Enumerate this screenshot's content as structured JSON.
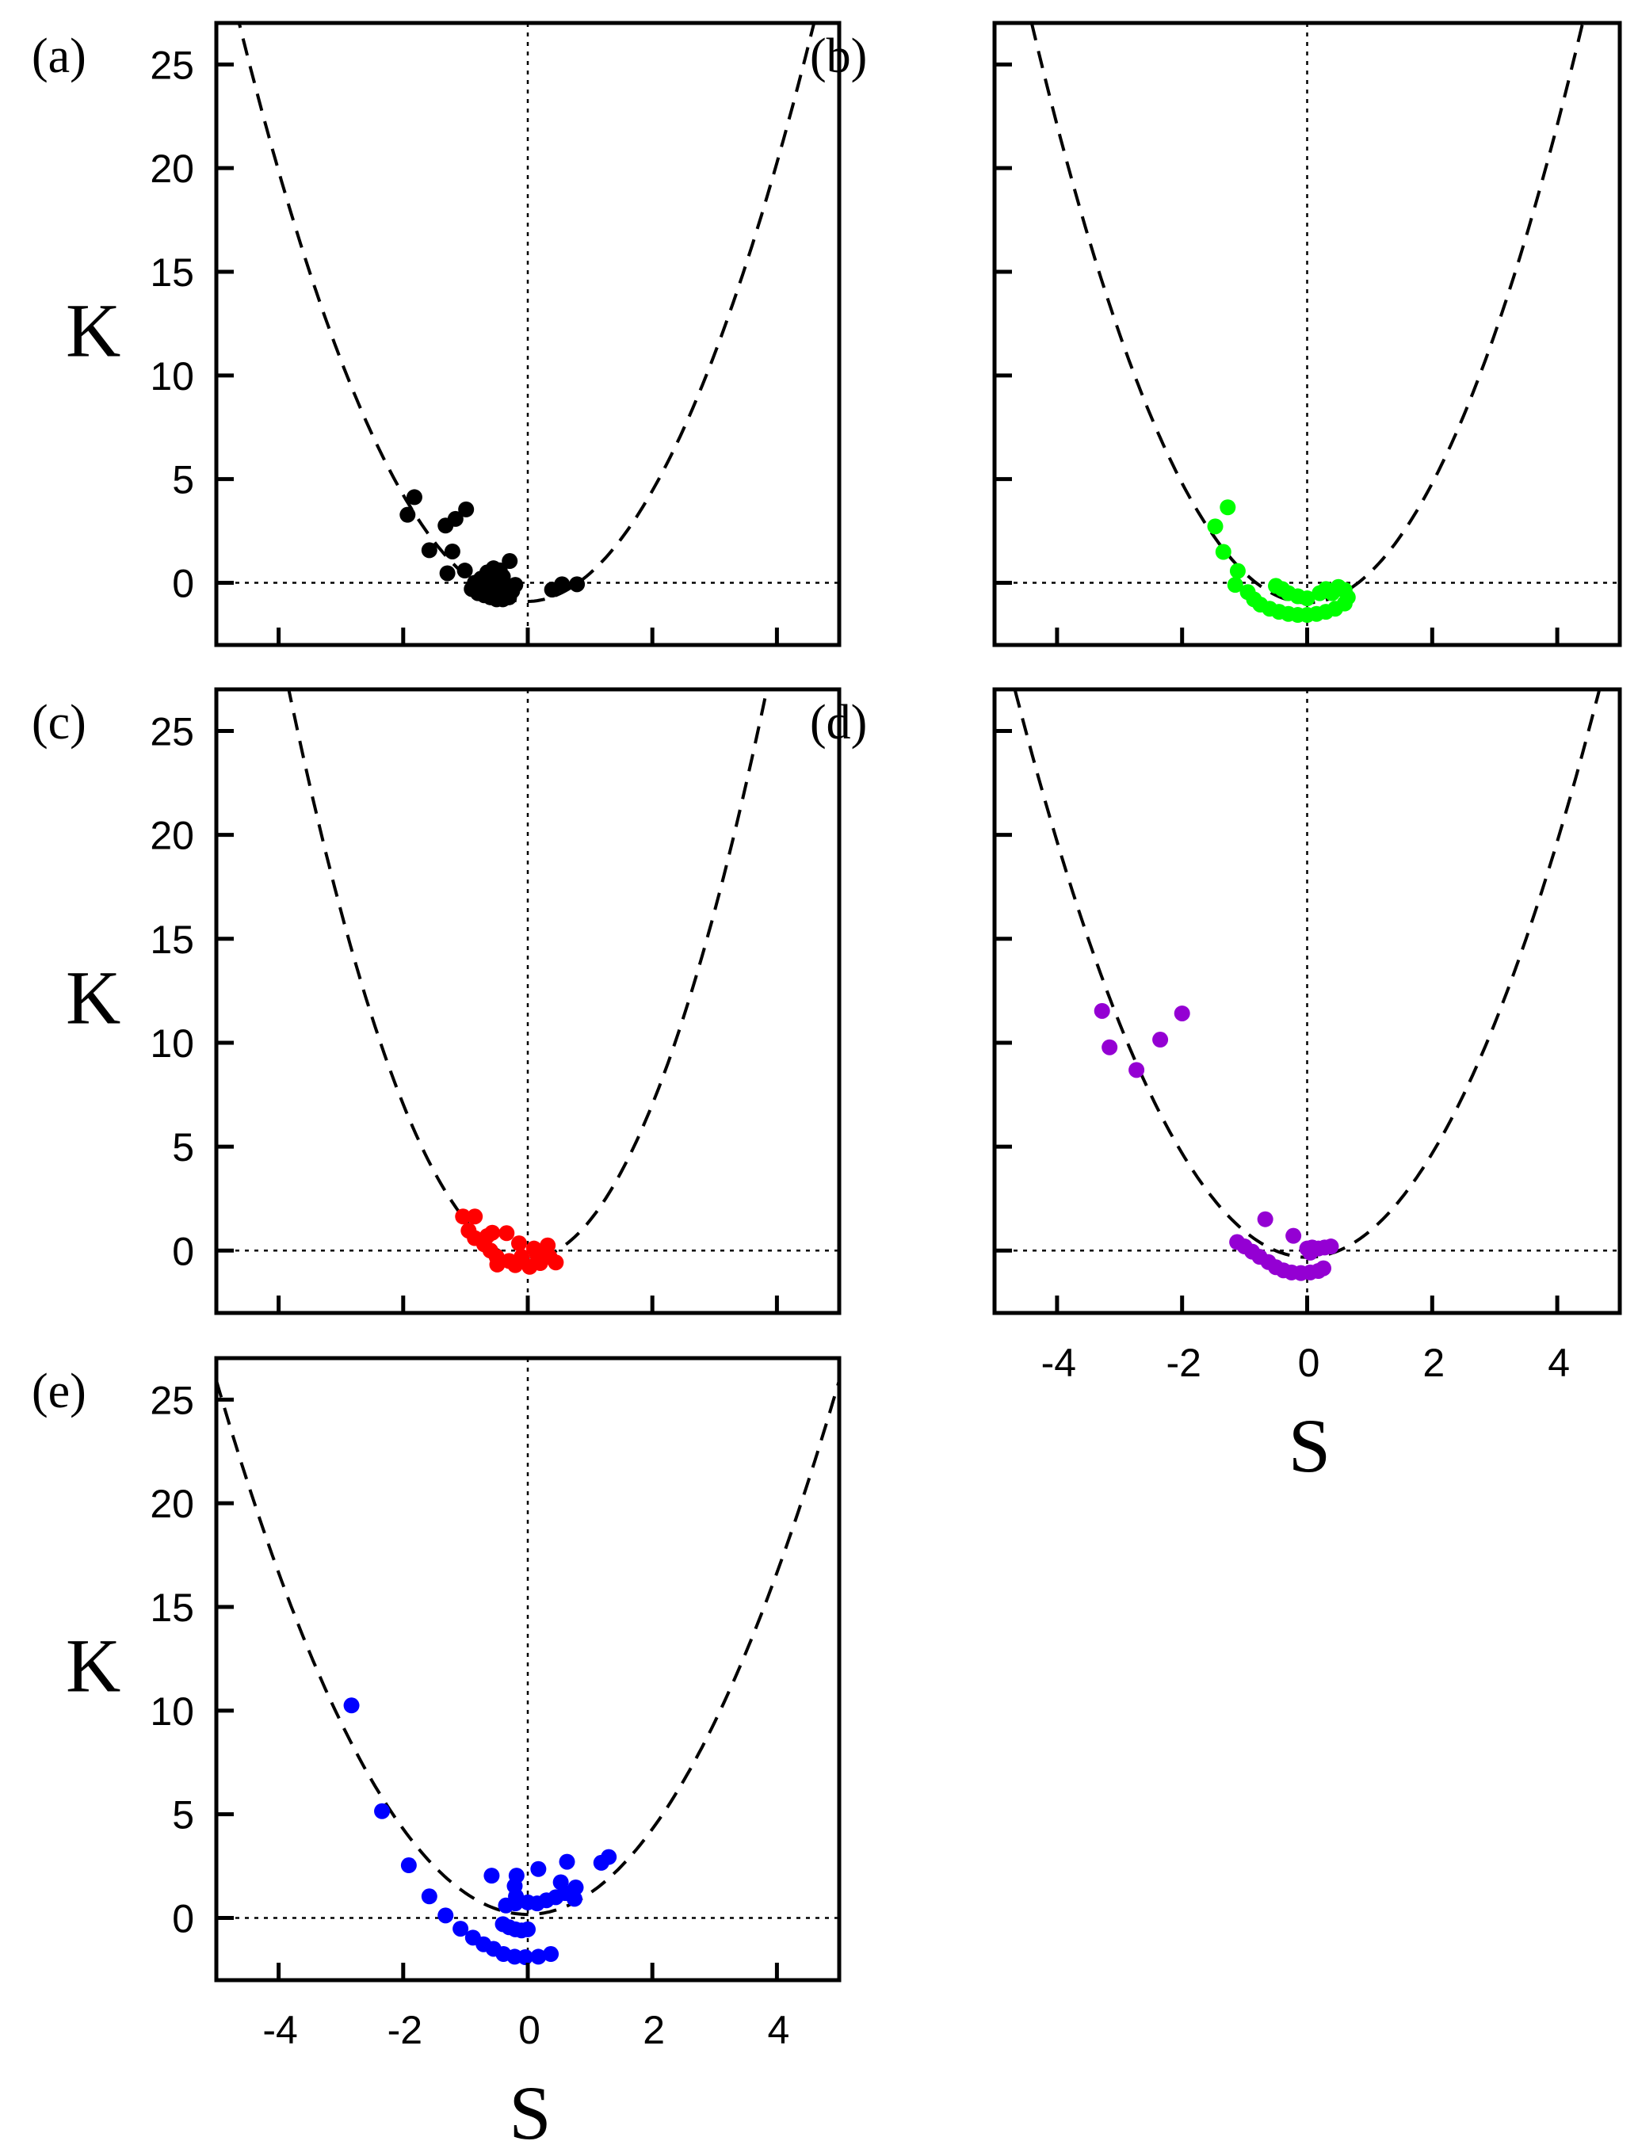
{
  "chart_data": [
    {
      "panel": "(a)",
      "type": "scatter",
      "color": "#000000",
      "xlabel": "",
      "ylabel": "K",
      "xlim": [
        -5,
        5
      ],
      "ylim": [
        -3,
        27
      ],
      "xticks": [
        "-4",
        "-2",
        "0",
        "2",
        "4"
      ],
      "yticks": [
        "0",
        "5",
        "10",
        "15",
        "20",
        "25"
      ],
      "show_xticklabels": false,
      "show_yticklabels": true,
      "reference_lines": {
        "x": 0,
        "y": 0
      },
      "fit_curve": {
        "style": "dashed",
        "a": 1.31,
        "b": 0.05,
        "c": -0.9,
        "formula": "K = a*S^2 + b*S + c"
      },
      "points": [
        [
          -1.82,
          4.13
        ],
        [
          -1.93,
          3.28
        ],
        [
          -1.32,
          2.76
        ],
        [
          -1.16,
          3.08
        ],
        [
          -0.99,
          3.54
        ],
        [
          -1.58,
          1.57
        ],
        [
          -1.21,
          1.51
        ],
        [
          -1.01,
          0.59
        ],
        [
          -1.29,
          0.46
        ],
        [
          -0.29,
          1.05
        ],
        [
          -0.85,
          0.0
        ],
        [
          -0.75,
          0.2
        ],
        [
          -0.65,
          0.5
        ],
        [
          -0.55,
          0.7
        ],
        [
          -0.45,
          0.6
        ],
        [
          -0.9,
          -0.3
        ],
        [
          -0.8,
          -0.5
        ],
        [
          -0.7,
          -0.6
        ],
        [
          -0.6,
          -0.7
        ],
        [
          -0.5,
          -0.8
        ],
        [
          -0.4,
          -0.8
        ],
        [
          -0.3,
          -0.7
        ],
        [
          -0.25,
          -0.4
        ],
        [
          -0.2,
          -0.1
        ],
        [
          -0.35,
          -0.2
        ],
        [
          -0.45,
          -0.1
        ],
        [
          -0.55,
          -0.3
        ],
        [
          -0.65,
          -0.2
        ],
        [
          -0.75,
          -0.4
        ],
        [
          -0.5,
          0.2
        ],
        [
          -0.4,
          0.3
        ],
        [
          -0.6,
          0.1
        ],
        [
          0.39,
          -0.33
        ],
        [
          0.55,
          -0.07
        ],
        [
          0.79,
          -0.07
        ]
      ]
    },
    {
      "panel": "(b)",
      "type": "scatter",
      "color": "#00ff00",
      "xlabel": "",
      "ylabel": "",
      "xlim": [
        -5,
        5
      ],
      "ylim": [
        -3,
        27
      ],
      "xticks": [
        "-4",
        "-2",
        "0",
        "2",
        "4"
      ],
      "yticks": [
        "0",
        "5",
        "10",
        "15",
        "20",
        "25"
      ],
      "show_xticklabels": false,
      "show_yticklabels": false,
      "reference_lines": {
        "x": 0,
        "y": 0
      },
      "fit_curve": {
        "style": "dashed",
        "a": 1.44,
        "b": 0.0,
        "c": -0.96,
        "formula": "K = a*S^2 + b*S + c"
      },
      "points": [
        [
          -1.27,
          3.64
        ],
        [
          -1.47,
          2.72
        ],
        [
          -1.34,
          1.49
        ],
        [
          -1.11,
          0.57
        ],
        [
          -1.15,
          -0.1
        ],
        [
          -0.95,
          -0.45
        ],
        [
          -0.85,
          -0.8
        ],
        [
          -0.75,
          -1.05
        ],
        [
          -0.6,
          -1.25
        ],
        [
          -0.45,
          -1.4
        ],
        [
          -0.3,
          -1.5
        ],
        [
          -0.15,
          -1.55
        ],
        [
          0.0,
          -1.55
        ],
        [
          0.15,
          -1.5
        ],
        [
          0.3,
          -1.4
        ],
        [
          0.45,
          -1.25
        ],
        [
          0.6,
          -1.0
        ],
        [
          0.65,
          -0.7
        ],
        [
          0.6,
          -0.35
        ],
        [
          0.5,
          -0.2
        ],
        [
          -0.5,
          -0.15
        ],
        [
          -0.4,
          -0.3
        ],
        [
          -0.3,
          -0.5
        ],
        [
          -0.15,
          -0.65
        ],
        [
          0.0,
          -0.75
        ],
        [
          0.2,
          -0.5
        ],
        [
          0.3,
          -0.3
        ],
        [
          0.4,
          -0.5
        ]
      ]
    },
    {
      "panel": "(c)",
      "type": "scatter",
      "color": "#ff0000",
      "xlabel": "",
      "ylabel": "K",
      "xlim": [
        -5,
        5
      ],
      "ylim": [
        -3,
        27
      ],
      "xticks": [
        "-4",
        "-2",
        "0",
        "2",
        "4"
      ],
      "yticks": [
        "0",
        "5",
        "10",
        "15",
        "20",
        "25"
      ],
      "show_xticklabels": false,
      "show_yticklabels": true,
      "reference_lines": {
        "x": 0,
        "y": 0
      },
      "fit_curve": {
        "style": "dashed",
        "a": 1.86,
        "b": 0.0,
        "c": -0.4,
        "formula": "K = a*S^2 + b*S + c"
      },
      "points": [
        [
          -1.04,
          1.64
        ],
        [
          -0.85,
          1.64
        ],
        [
          -0.95,
          0.96
        ],
        [
          -0.57,
          0.86
        ],
        [
          -0.34,
          0.84
        ],
        [
          -0.85,
          0.6
        ],
        [
          -0.7,
          0.3
        ],
        [
          -0.6,
          0.0
        ],
        [
          -0.5,
          -0.3
        ],
        [
          -0.49,
          -0.67
        ],
        [
          -0.3,
          -0.5
        ],
        [
          -0.14,
          0.35
        ],
        [
          -0.1,
          -0.3
        ],
        [
          0.03,
          -0.78
        ],
        [
          0.1,
          0.1
        ],
        [
          0.2,
          -0.6
        ],
        [
          0.32,
          0.25
        ],
        [
          0.35,
          -0.3
        ],
        [
          0.45,
          -0.57
        ],
        [
          -0.2,
          -0.7
        ],
        [
          0.15,
          -0.2
        ],
        [
          -0.65,
          0.7
        ]
      ]
    },
    {
      "panel": "(d)",
      "type": "scatter",
      "color": "#9400d3",
      "xlabel": "S",
      "ylabel": "",
      "xlim": [
        -5,
        5
      ],
      "ylim": [
        -3,
        27
      ],
      "xticks": [
        "-4",
        "-2",
        "0",
        "2",
        "4"
      ],
      "yticks": [
        "0",
        "5",
        "10",
        "15",
        "20",
        "25"
      ],
      "show_xticklabels": true,
      "show_yticklabels": false,
      "reference_lines": {
        "x": 0,
        "y": 0
      },
      "fit_curve": {
        "style": "dashed",
        "a": 1.25,
        "b": 0.0,
        "c": -0.32,
        "formula": "K = a*S^2 + b*S + c"
      },
      "points": [
        [
          -3.28,
          11.53
        ],
        [
          -3.16,
          9.78
        ],
        [
          -2.73,
          8.69
        ],
        [
          -2.35,
          10.15
        ],
        [
          -2.0,
          11.41
        ],
        [
          -0.67,
          1.51
        ],
        [
          -0.22,
          0.71
        ],
        [
          -1.12,
          0.41
        ],
        [
          -1.0,
          0.2
        ],
        [
          -0.88,
          -0.05
        ],
        [
          -0.76,
          -0.3
        ],
        [
          -0.62,
          -0.55
        ],
        [
          -0.5,
          -0.8
        ],
        [
          -0.38,
          -0.95
        ],
        [
          -0.25,
          -1.05
        ],
        [
          -0.1,
          -1.08
        ],
        [
          0.05,
          -1.05
        ],
        [
          0.18,
          -0.98
        ],
        [
          0.26,
          -0.85
        ],
        [
          0.0,
          0.1
        ],
        [
          0.08,
          0.15
        ],
        [
          0.18,
          0.1
        ],
        [
          0.28,
          0.15
        ],
        [
          0.38,
          0.2
        ],
        [
          0.05,
          -0.1
        ]
      ]
    },
    {
      "panel": "(e)",
      "type": "scatter",
      "color": "#0000ff",
      "xlabel": "S",
      "ylabel": "K",
      "xlim": [
        -5,
        5
      ],
      "ylim": [
        -3,
        27
      ],
      "xticks": [
        "-4",
        "-2",
        "0",
        "2",
        "4"
      ],
      "yticks": [
        "0",
        "5",
        "10",
        "15",
        "20",
        "25"
      ],
      "show_xticklabels": true,
      "show_yticklabels": true,
      "reference_lines": {
        "x": 0,
        "y": 0
      },
      "fit_curve": {
        "style": "dashed",
        "a": 1.03,
        "b": 0.0,
        "c": 0.17,
        "formula": "K = a*S^2 + b*S + c"
      },
      "points": [
        [
          -2.83,
          10.25
        ],
        [
          -2.34,
          5.15
        ],
        [
          -1.91,
          2.54
        ],
        [
          -1.58,
          1.04
        ],
        [
          -1.32,
          0.12
        ],
        [
          -1.08,
          -0.52
        ],
        [
          -0.88,
          -0.95
        ],
        [
          -0.71,
          -1.27
        ],
        [
          -0.55,
          -1.49
        ],
        [
          -0.39,
          -1.74
        ],
        [
          -0.21,
          -1.87
        ],
        [
          -0.04,
          -1.89
        ],
        [
          0.17,
          -1.87
        ],
        [
          0.37,
          -1.74
        ],
        [
          -0.58,
          2.04
        ],
        [
          -0.18,
          2.04
        ],
        [
          0.17,
          2.36
        ],
        [
          0.63,
          2.71
        ],
        [
          1.18,
          2.66
        ],
        [
          1.3,
          2.94
        ],
        [
          0.53,
          1.72
        ],
        [
          0.77,
          1.47
        ],
        [
          0.75,
          0.92
        ],
        [
          -0.21,
          1.54
        ],
        [
          -0.19,
          1.04
        ],
        [
          -0.35,
          0.6
        ],
        [
          -0.2,
          0.7
        ],
        [
          0.0,
          0.75
        ],
        [
          0.15,
          0.7
        ],
        [
          0.3,
          0.85
        ],
        [
          0.45,
          1.0
        ],
        [
          0.6,
          1.2
        ],
        [
          -0.4,
          -0.3
        ],
        [
          -0.3,
          -0.45
        ],
        [
          -0.2,
          -0.55
        ],
        [
          -0.1,
          -0.6
        ],
        [
          0.0,
          -0.55
        ]
      ]
    }
  ]
}
